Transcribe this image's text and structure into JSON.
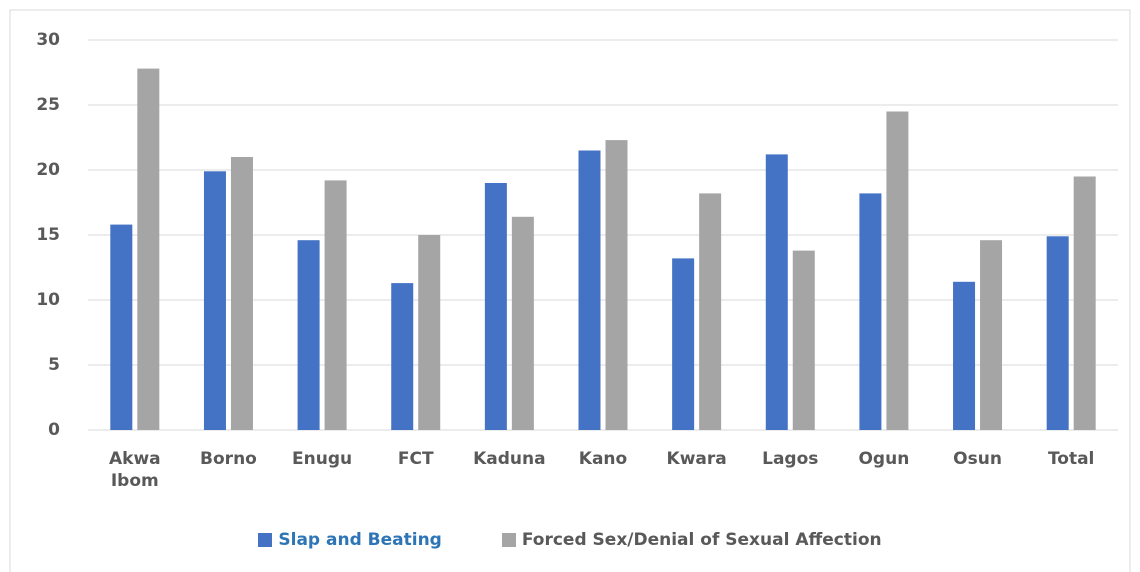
{
  "chart_data": {
    "type": "bar",
    "categories": [
      "Akwa Ibom",
      "Borno",
      "Enugu",
      "FCT",
      "Kaduna",
      "Kano",
      "Kwara",
      "Lagos",
      "Ogun",
      "Osun",
      "Total"
    ],
    "series": [
      {
        "name": "Slap and Beating",
        "color": "#4472c4",
        "values": [
          15.8,
          19.9,
          14.6,
          11.3,
          19.0,
          21.5,
          13.2,
          21.2,
          18.2,
          11.4,
          14.9
        ]
      },
      {
        "name": "Forced Sex/Denial of Sexual Affection",
        "color": "#a5a5a5",
        "values": [
          27.8,
          21.0,
          19.2,
          15.0,
          16.4,
          22.3,
          18.2,
          13.8,
          24.5,
          14.6,
          19.5
        ]
      }
    ],
    "ylim": [
      0,
      30
    ],
    "yticks": [
      0,
      5,
      10,
      15,
      20,
      25,
      30
    ],
    "grid": true,
    "legend": "bottom"
  }
}
